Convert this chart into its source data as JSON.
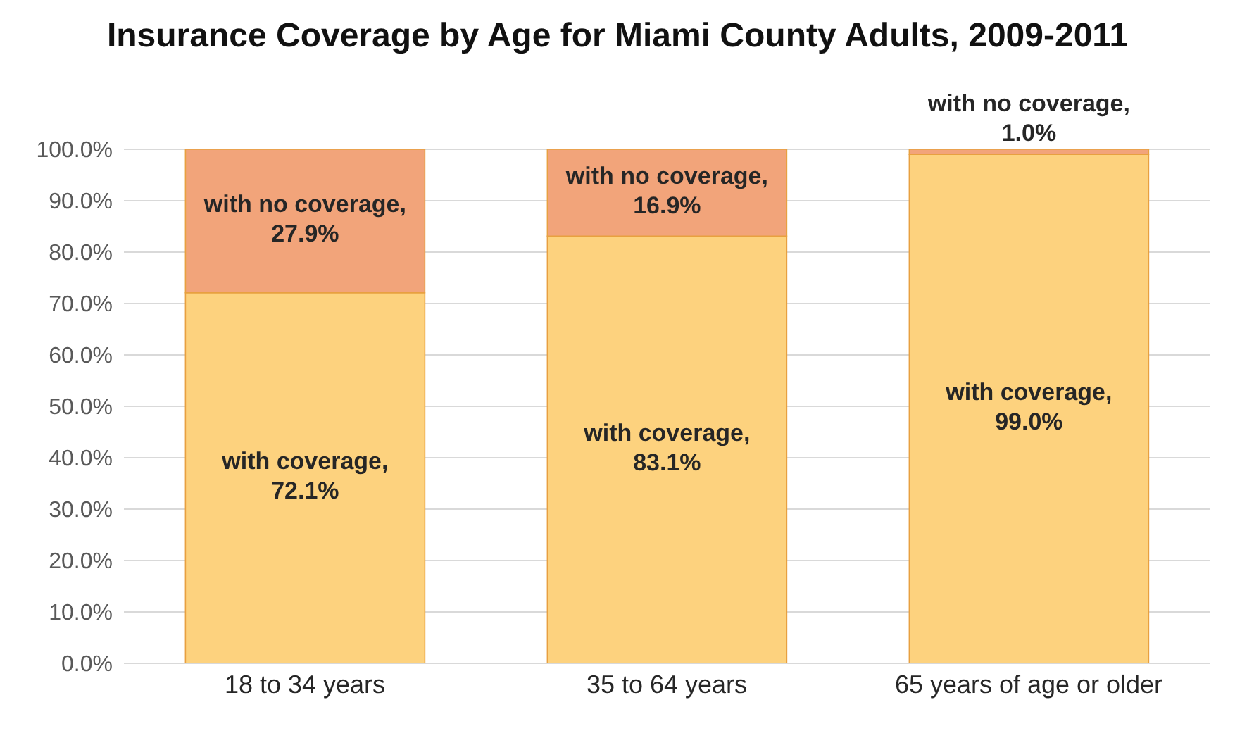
{
  "chart_data": {
    "type": "bar",
    "title": "Insurance Coverage by Age for Miami County Adults, 2009-2011",
    "categories": [
      "18 to 34 years",
      "35 to 64 years",
      "65 years of age or older"
    ],
    "stacked": true,
    "series": [
      {
        "color": "#fdd27e",
        "values": [
          72.1,
          83.1,
          99.0
        ],
        "value_labels": [
          "with coverage, 72.1%",
          "with coverage, 83.1%",
          "with coverage, 99.0%"
        ]
      },
      {
        "color": "#f2a47a",
        "values": [
          27.9,
          16.9,
          1.0
        ],
        "value_labels": [
          "with no coverage, 27.9%",
          "with no coverage, 16.9%",
          "with no coverage, 1.0%"
        ]
      }
    ],
    "ylim": [
      0,
      100
    ],
    "yticks": [
      {
        "value": 0,
        "label": "0.0%"
      },
      {
        "value": 10,
        "label": "10.0%"
      },
      {
        "value": 20,
        "label": "20.0%"
      },
      {
        "value": 30,
        "label": "30.0%"
      },
      {
        "value": 40,
        "label": "40.0%"
      },
      {
        "value": 50,
        "label": "50.0%"
      },
      {
        "value": 60,
        "label": "60.0%"
      },
      {
        "value": 70,
        "label": "70.0%"
      },
      {
        "value": 80,
        "label": "80.0%"
      },
      {
        "value": 90,
        "label": "90.0%"
      },
      {
        "value": 100,
        "label": "100.0%"
      }
    ],
    "grid": true
  }
}
